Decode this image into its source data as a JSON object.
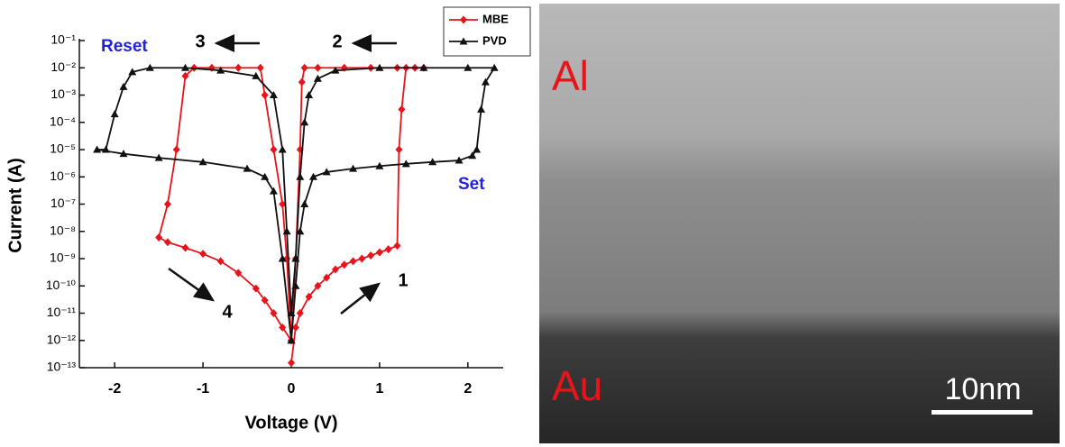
{
  "chart_data": {
    "type": "line",
    "ylog": true,
    "xlabel": "Voltage (V)",
    "ylabel": "Current (A)",
    "xlim": [
      -2.4,
      2.4
    ],
    "xticks": [
      -2,
      -1,
      0,
      1,
      2
    ],
    "ylim": [
      1e-13,
      0.1
    ],
    "yticks": [
      {
        "value": 0.1,
        "label": "10⁻¹"
      },
      {
        "value": 0.01,
        "label": "10⁻²"
      },
      {
        "value": 0.001,
        "label": "10⁻³"
      },
      {
        "value": 0.0001,
        "label": "10⁻⁴"
      },
      {
        "value": 1e-05,
        "label": "10⁻⁵"
      },
      {
        "value": 1e-06,
        "label": "10⁻⁶"
      },
      {
        "value": 1e-07,
        "label": "10⁻⁷"
      },
      {
        "value": 1e-08,
        "label": "10⁻⁸"
      },
      {
        "value": 1e-09,
        "label": "10⁻⁹"
      },
      {
        "value": 1e-10,
        "label": "10⁻¹⁰"
      },
      {
        "value": 1e-11,
        "label": "10⁻¹¹"
      },
      {
        "value": 1e-12,
        "label": "10⁻¹²"
      },
      {
        "value": 1e-13,
        "label": "10⁻¹³"
      }
    ],
    "legend": "upper right",
    "series": [
      {
        "name": "MBE",
        "color": "#e8131b",
        "marker": "diamond",
        "x": [
          0,
          0.05,
          0.1,
          0.2,
          0.3,
          0.4,
          0.5,
          0.6,
          0.7,
          0.8,
          0.9,
          1.0,
          1.1,
          1.2,
          1.22,
          1.25,
          1.3,
          1.4,
          1.5,
          1.2,
          0.9,
          0.6,
          0.3,
          0.15,
          0.12,
          0.1,
          0.05,
          0,
          -0.05,
          -0.1,
          -0.2,
          -0.3,
          -0.35,
          -0.6,
          -0.9,
          -1.1,
          -1.2,
          -1.3,
          -1.4,
          -1.5,
          -1.4,
          -1.2,
          -1.0,
          -0.8,
          -0.6,
          -0.4,
          -0.3,
          -0.2,
          -0.1,
          0
        ],
        "values": [
          1.5e-13,
          3e-12,
          1e-11,
          4e-11,
          1e-10,
          2e-10,
          4e-10,
          6e-10,
          8e-10,
          1e-09,
          1.3e-09,
          1.7e-09,
          2.2e-09,
          3e-09,
          1e-05,
          0.0003,
          0.01,
          0.01,
          0.01,
          0.01,
          0.01,
          0.01,
          0.01,
          0.01,
          0.003,
          1e-05,
          1e-09,
          1e-12,
          1e-09,
          1e-07,
          1e-05,
          0.001,
          0.01,
          0.01,
          0.01,
          0.01,
          0.005,
          1e-05,
          1e-07,
          6e-09,
          4e-09,
          2.5e-09,
          1.5e-09,
          8e-10,
          3e-10,
          8e-11,
          3e-11,
          1e-11,
          3e-12,
          1e-12
        ]
      },
      {
        "name": "PVD",
        "color": "#111111",
        "marker": "triangle",
        "x": [
          0,
          0.05,
          0.1,
          0.15,
          0.25,
          0.4,
          0.7,
          1.0,
          1.3,
          1.6,
          1.9,
          2.05,
          2.1,
          2.15,
          2.2,
          2.3,
          2.0,
          1.5,
          1.0,
          0.5,
          0.3,
          0.2,
          0.15,
          0.1,
          0.05,
          0,
          -0.05,
          -0.1,
          -0.2,
          -0.4,
          -0.8,
          -1.2,
          -1.6,
          -1.8,
          -1.9,
          -2.0,
          -2.1,
          -2.2,
          -1.9,
          -1.5,
          -1.0,
          -0.5,
          -0.3,
          -0.2,
          -0.1,
          0
        ],
        "values": [
          1e-12,
          1e-10,
          1e-08,
          1e-07,
          1e-06,
          1.5e-06,
          2e-06,
          2.5e-06,
          3e-06,
          3.5e-06,
          4e-06,
          6e-06,
          1e-05,
          0.0003,
          0.003,
          0.01,
          0.01,
          0.01,
          0.01,
          0.008,
          0.004,
          0.001,
          0.0001,
          1e-06,
          1e-09,
          1e-11,
          1e-08,
          1e-05,
          0.001,
          0.005,
          0.008,
          0.01,
          0.01,
          0.007,
          0.002,
          0.0002,
          1e-05,
          1e-05,
          7e-06,
          5e-06,
          3.5e-06,
          2e-06,
          1e-06,
          3e-07,
          1e-09,
          1e-12
        ]
      }
    ],
    "annotations": [
      "Reset",
      "Set",
      "1",
      "2",
      "3",
      "4"
    ]
  },
  "image": {
    "labels": [
      "Al",
      "Au"
    ],
    "scale_bar": "10nm"
  }
}
